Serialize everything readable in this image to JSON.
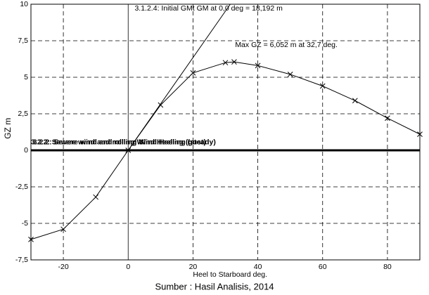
{
  "chart_data": {
    "type": "line",
    "x_label": "Heel to Starboard  deg.",
    "y_label": "GZ  m",
    "xlim": [
      -30,
      90
    ],
    "ylim": [
      -7.5,
      10
    ],
    "xticks": [
      -20,
      0,
      20,
      40,
      60,
      80
    ],
    "yticks": [
      {
        "value": -7.5,
        "label": "-7,5"
      },
      -5,
      {
        "value": -2.5,
        "label": "-2,5"
      },
      0,
      {
        "value": 2.5,
        "label": "2,5"
      },
      5,
      {
        "value": 7.5,
        "label": "7,5"
      },
      10
    ],
    "grid": true,
    "series": [
      {
        "color": "#000000",
        "marker": "x",
        "x": [
          -30,
          -20,
          -10,
          0,
          10,
          20,
          30,
          32.7,
          40,
          50,
          60,
          70,
          80,
          90
        ],
        "values": [
          -6.1,
          -5.4,
          -3.2,
          0,
          3.1,
          5.3,
          6.0,
          6.052,
          5.8,
          5.2,
          4.4,
          3.4,
          2.2,
          1.1
        ]
      },
      {
        "color": "#000000",
        "marker": "none",
        "x": [
          0,
          31.5
        ],
        "values": [
          0,
          10
        ]
      },
      {
        "color": "#000000",
        "marker": "none",
        "width": 3,
        "x": [
          -30,
          90
        ],
        "values": [
          0,
          0
        ]
      }
    ],
    "annotations": [
      {
        "text": "3.1.2.4: Initial GMt GM at 0,0 deg = 18,192 m",
        "x": 2,
        "y": 9.7
      },
      {
        "text": "Max GZ = 6,052 m at 32,7 deg.",
        "x": 33,
        "y": 7.2
      },
      {
        "text": "3.2.2: Severe wind and rolling Wind Heeling (gust)",
        "x": -30,
        "y": 0.55
      },
      {
        "text": "3.2.2: Severe wind and rolling Wind Heeling (steady)",
        "x": -29.4,
        "y": 0.55
      }
    ]
  },
  "caption": "Sumber : Hasil Analisis, 2014"
}
